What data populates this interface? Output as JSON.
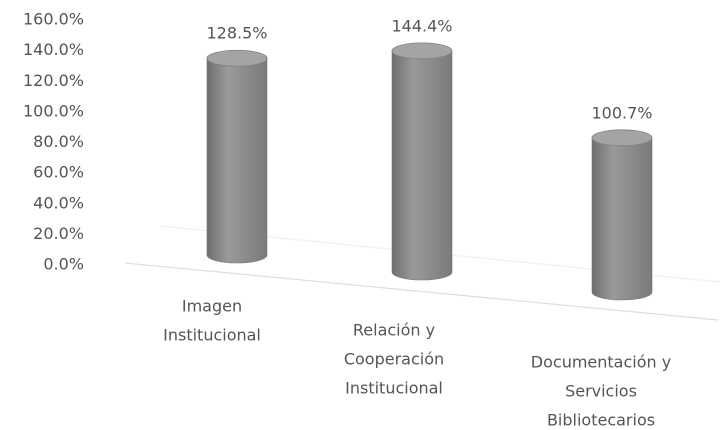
{
  "chart_data": {
    "type": "bar",
    "style": "cylinder",
    "categories": [
      [
        "Imagen",
        "Institucional"
      ],
      [
        "Relación y",
        "Cooperación",
        "Institucional"
      ],
      [
        "Documentación y",
        "Servicios",
        "Bibliotecarios"
      ]
    ],
    "values": [
      128.5,
      144.4,
      100.7
    ],
    "value_labels": [
      "128.5%",
      "144.4%",
      "100.7%"
    ],
    "color": "#8a8a8a",
    "ylim": [
      0,
      160
    ],
    "yticks": [
      {
        "value": 0,
        "label": "0.0%"
      },
      {
        "value": 20,
        "label": "20.0%"
      },
      {
        "value": 40,
        "label": "40.0%"
      },
      {
        "value": 60,
        "label": "60.0%"
      },
      {
        "value": 80,
        "label": "80.0%"
      },
      {
        "value": 100,
        "label": "100.0%"
      },
      {
        "value": 120,
        "label": "120.0%"
      },
      {
        "value": 140,
        "label": "140.0%"
      },
      {
        "value": 160,
        "label": "160.0%"
      }
    ],
    "grid": false
  }
}
